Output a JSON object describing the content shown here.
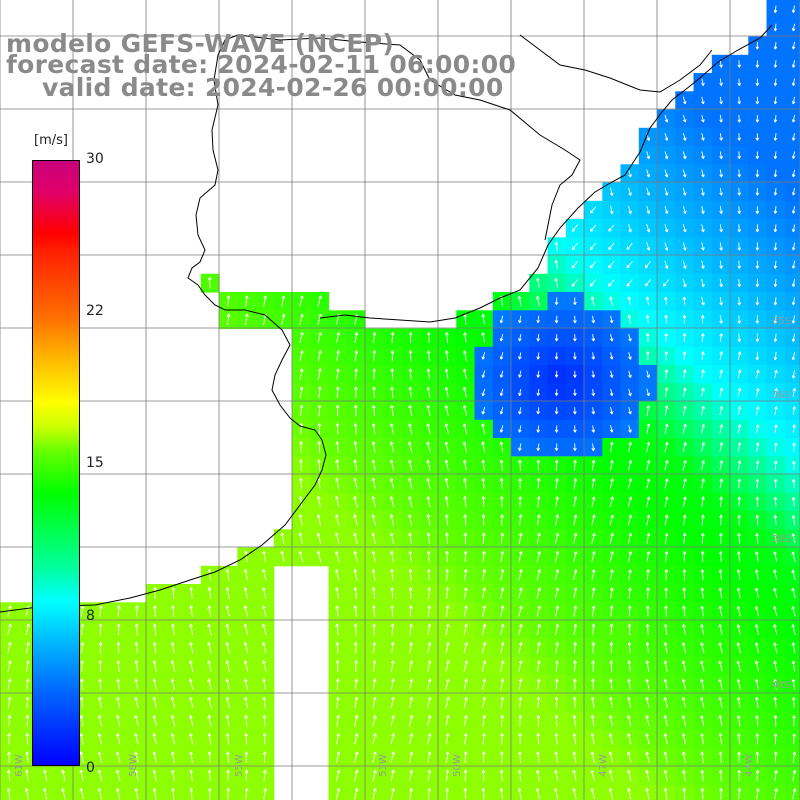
{
  "title": {
    "line1": "modelo GEFS-WAVE (NCEP)",
    "line2": "forecast date: 2024-02-11 06:00:00",
    "line3": "valid date: 2024-02-26 00:00:00"
  },
  "colorbar": {
    "unit": "[m/s]",
    "ticks": [
      "30",
      "22",
      "15",
      "8",
      "0"
    ],
    "tick_values": [
      30,
      22,
      15,
      8,
      0
    ],
    "range": [
      0,
      30
    ]
  },
  "axes": {
    "lon_labels": [
      "61W",
      "58W",
      "55W",
      "53W",
      "50W",
      "47W",
      "44W"
    ],
    "lat_labels": [
      "35S",
      "36S",
      "38S",
      "40S"
    ]
  },
  "colors": {
    "land": "#ffffff",
    "coast": "#000000",
    "grid": "#7a7a7a",
    "arrow": "#ffffff",
    "title": "#8a8a8a"
  },
  "legend_placement": "left"
}
